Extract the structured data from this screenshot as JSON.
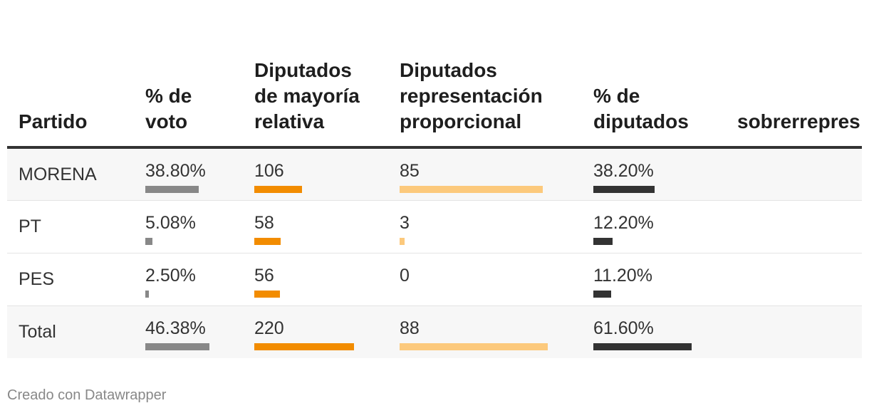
{
  "chart_data": {
    "type": "table",
    "columns": [
      "Partido",
      "% de voto",
      "Diputados de mayoría relativa",
      "Diputados representación proporcional",
      "% de diputados",
      "sobrerrepres"
    ],
    "rows": [
      {
        "party": "MORENA",
        "vote_pct": 38.8,
        "vote_label": "38.80%",
        "mayoria": 106,
        "mayoria_label": "106",
        "rp": 85,
        "rp_label": "85",
        "dip_pct": 38.2,
        "dip_label": "38.20%"
      },
      {
        "party": "PT",
        "vote_pct": 5.08,
        "vote_label": "5.08%",
        "mayoria": 58,
        "mayoria_label": "58",
        "rp": 3,
        "rp_label": "3",
        "dip_pct": 12.2,
        "dip_label": "12.20%"
      },
      {
        "party": "PES",
        "vote_pct": 2.5,
        "vote_label": "2.50%",
        "mayoria": 56,
        "mayoria_label": "56",
        "rp": 0,
        "rp_label": "0",
        "dip_pct": 11.2,
        "dip_label": "11.20%"
      },
      {
        "party": "Total",
        "vote_pct": 46.38,
        "vote_label": "46.38%",
        "mayoria": 220,
        "mayoria_label": "220",
        "rp": 88,
        "rp_label": "88",
        "dip_pct": 61.6,
        "dip_label": "61.60%"
      }
    ],
    "bar_colors": {
      "vote": "#888888",
      "mayoria": "#f28c00",
      "rp": "#fcc97c",
      "dip": "#333333"
    }
  },
  "footer": "Creado con Datawrapper"
}
